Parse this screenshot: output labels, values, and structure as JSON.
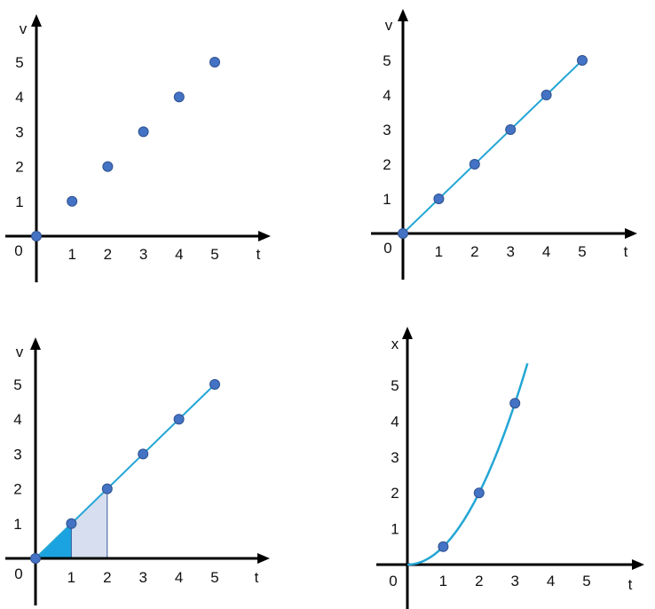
{
  "colors": {
    "axis": "#000000",
    "point_fill": "#4472c4",
    "point_stroke": "#2f528f",
    "line": "#23a6d5",
    "area_first": "#1aa3e0",
    "area_second": "#d6def0",
    "area_second_stroke": "#3a5a9a",
    "background": "#ffffff"
  },
  "chart_data": [
    {
      "type": "scatter",
      "xlabel": "t",
      "ylabel": "v",
      "origin_label": "0",
      "xlim": [
        0,
        5
      ],
      "ylim": [
        0,
        5
      ],
      "xticks": [
        "1",
        "2",
        "3",
        "4",
        "5"
      ],
      "yticks": [
        "1",
        "2",
        "3",
        "4",
        "5"
      ],
      "points": [
        [
          0,
          0
        ],
        [
          1,
          1
        ],
        [
          2,
          2
        ],
        [
          3,
          3
        ],
        [
          4,
          4
        ],
        [
          5,
          5
        ]
      ],
      "fit_line": false,
      "area_segments": [],
      "curve": false
    },
    {
      "type": "line",
      "xlabel": "t",
      "ylabel": "v",
      "origin_label": "0",
      "xlim": [
        0,
        5
      ],
      "ylim": [
        0,
        5
      ],
      "xticks": [
        "1",
        "2",
        "3",
        "4",
        "5"
      ],
      "yticks": [
        "1",
        "2",
        "3",
        "4",
        "5"
      ],
      "points": [
        [
          0,
          0
        ],
        [
          1,
          1
        ],
        [
          2,
          2
        ],
        [
          3,
          3
        ],
        [
          4,
          4
        ],
        [
          5,
          5
        ]
      ],
      "fit_line": true,
      "area_segments": [],
      "curve": false
    },
    {
      "type": "area",
      "xlabel": "t",
      "ylabel": "v",
      "origin_label": "0",
      "xlim": [
        0,
        5
      ],
      "ylim": [
        0,
        5
      ],
      "xticks": [
        "1",
        "2",
        "3",
        "4",
        "5"
      ],
      "yticks": [
        "1",
        "2",
        "3",
        "4",
        "5"
      ],
      "points": [
        [
          0,
          0
        ],
        [
          1,
          1
        ],
        [
          2,
          2
        ],
        [
          3,
          3
        ],
        [
          4,
          4
        ],
        [
          5,
          5
        ]
      ],
      "fit_line": true,
      "area_segments": [
        {
          "from": 0,
          "to": 1,
          "color": "#1aa3e0"
        },
        {
          "from": 1,
          "to": 2,
          "color": "#d6def0"
        }
      ],
      "curve": false
    },
    {
      "type": "line",
      "xlabel": "t",
      "ylabel": "x",
      "origin_label": "0",
      "xlim": [
        0,
        5
      ],
      "ylim": [
        0,
        5
      ],
      "xticks": [
        "1",
        "2",
        "3",
        "4",
        "5"
      ],
      "yticks": [
        "1",
        "2",
        "3",
        "4",
        "5"
      ],
      "points": [
        [
          1,
          0.5
        ],
        [
          2,
          2.0
        ],
        [
          3,
          4.5
        ]
      ],
      "fit_line": false,
      "area_segments": [],
      "curve": true,
      "curve_coefficient": 0.5,
      "curve_x_end": 3.35
    }
  ]
}
